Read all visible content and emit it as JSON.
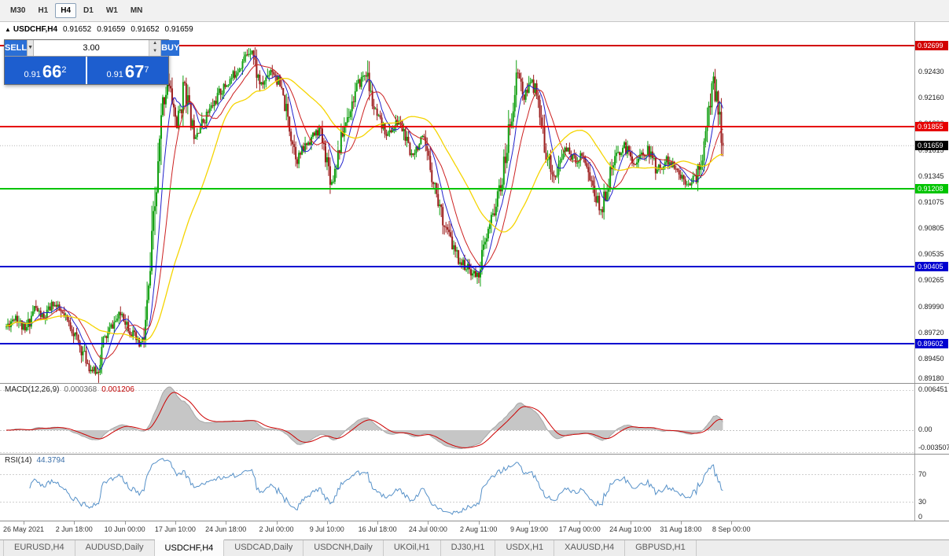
{
  "toolbar": {
    "timeframes": [
      "M30",
      "H1",
      "H4",
      "D1",
      "W1",
      "MN"
    ],
    "active": "H4"
  },
  "symbol_header": {
    "icon": "▲",
    "symbol": "USDCHF,H4",
    "open": "0.91652",
    "high": "0.91659",
    "low": "0.91652",
    "close": "0.91659"
  },
  "trade_panel": {
    "sell_label": "SELL",
    "buy_label": "BUY",
    "volume": "3.00",
    "sell_price": {
      "small": "0.91",
      "big": "66",
      "sup": "2"
    },
    "buy_price": {
      "small": "0.91",
      "big": "67",
      "sup": "7"
    }
  },
  "indicators": {
    "macd": {
      "label": "MACD(12,26,9)",
      "value_main": "0.000368",
      "value_signal": "0.001206",
      "axis_labels": [
        "0.006451",
        "0.00",
        "-0.003507"
      ]
    },
    "rsi": {
      "label": "RSI(14)",
      "value": "44.3794",
      "axis_labels": [
        "70",
        "30",
        "0"
      ]
    }
  },
  "tabs": {
    "items": [
      "EURUSD,H4",
      "AUDUSD,Daily",
      "USDCHF,H4",
      "USDCAD,Daily",
      "USDCNH,Daily",
      "UKOil,H1",
      "DJ30,H1",
      "USDX,H1",
      "XAUUSD,H4",
      "GBPUSD,H1"
    ],
    "active_index": 2
  },
  "chart_data": {
    "type": "candlestick",
    "symbol": "USDCHF",
    "timeframe": "H4",
    "bars": 459,
    "ylim": [
      0.8918,
      0.9288
    ],
    "y_ticks": [
      "0.92430",
      "0.92160",
      "0.91890",
      "0.91615",
      "0.91345",
      "0.91075",
      "0.90805",
      "0.90535",
      "0.90265",
      "0.89990",
      "0.89720",
      "0.89450",
      "0.89180"
    ],
    "x_labels": [
      "26 May 2021",
      "2 Jun 18:00",
      "10 Jun 00:00",
      "17 Jun 10:00",
      "24 Jun 18:00",
      "2 Jul 00:00",
      "9 Jul 10:00",
      "16 Jul 18:00",
      "24 Jul 00:00",
      "2 Aug 11:00",
      "9 Aug 19:00",
      "17 Aug 00:00",
      "24 Aug 10:00",
      "31 Aug 18:00",
      "8 Sep 00:00"
    ],
    "current_price": {
      "label": "0.91659",
      "value": 0.91659,
      "badge_color": "#000000"
    },
    "hlines": [
      {
        "value": 0.92699,
        "label": "0.92699",
        "color": "#d20000"
      },
      {
        "value": 0.91855,
        "label": "0.91855",
        "color": "#e60000"
      },
      {
        "value": 0.91208,
        "label": "0.91208",
        "color": "#00c400"
      },
      {
        "value": 0.90405,
        "label": "0.90405",
        "color": "#0000d0"
      },
      {
        "value": 0.89602,
        "label": "0.89602",
        "color": "#0000d0"
      }
    ],
    "colors": {
      "up": "#12a012",
      "down": "#9c1c1c",
      "ma_fast": "#2020cc",
      "ma_mid": "#cc2020",
      "ma_slow": "#f5d400",
      "macd_fill": "#c6c6c6",
      "macd_edge": "#a8a8a8",
      "macd_signal": "#cc0000",
      "rsi": "#5590c8"
    },
    "ma_periods": {
      "fast": 9,
      "mid": 18,
      "slow": 48
    },
    "macd_params": [
      12,
      26,
      9
    ],
    "rsi_period": 14,
    "close_keypoints": [
      [
        0,
        0.8978
      ],
      [
        6,
        0.899
      ],
      [
        12,
        0.8972
      ],
      [
        18,
        0.8998
      ],
      [
        24,
        0.8986
      ],
      [
        30,
        0.9002
      ],
      [
        36,
        0.899
      ],
      [
        42,
        0.8976
      ],
      [
        48,
        0.8954
      ],
      [
        54,
        0.8934
      ],
      [
        58,
        0.893
      ],
      [
        62,
        0.8962
      ],
      [
        68,
        0.898
      ],
      [
        74,
        0.8992
      ],
      [
        80,
        0.8972
      ],
      [
        85,
        0.8958
      ],
      [
        88,
        0.8966
      ],
      [
        91,
        0.9012
      ],
      [
        94,
        0.908
      ],
      [
        97,
        0.914
      ],
      [
        100,
        0.9208
      ],
      [
        103,
        0.9232
      ],
      [
        106,
        0.9214
      ],
      [
        109,
        0.9186
      ],
      [
        112,
        0.921
      ],
      [
        114,
        0.9232
      ],
      [
        117,
        0.92
      ],
      [
        120,
        0.9178
      ],
      [
        124,
        0.9186
      ],
      [
        128,
        0.9198
      ],
      [
        132,
        0.9208
      ],
      [
        136,
        0.922
      ],
      [
        140,
        0.9228
      ],
      [
        144,
        0.9236
      ],
      [
        148,
        0.9246
      ],
      [
        152,
        0.9256
      ],
      [
        155,
        0.9264
      ],
      [
        157,
        0.9268
      ],
      [
        160,
        0.9242
      ],
      [
        163,
        0.9228
      ],
      [
        166,
        0.9236
      ],
      [
        169,
        0.9246
      ],
      [
        172,
        0.924
      ],
      [
        175,
        0.9226
      ],
      [
        178,
        0.9208
      ],
      [
        182,
        0.9178
      ],
      [
        186,
        0.9152
      ],
      [
        189,
        0.916
      ],
      [
        192,
        0.9168
      ],
      [
        196,
        0.9176
      ],
      [
        200,
        0.9182
      ],
      [
        204,
        0.9158
      ],
      [
        208,
        0.9128
      ],
      [
        212,
        0.9158
      ],
      [
        216,
        0.9186
      ],
      [
        220,
        0.9206
      ],
      [
        224,
        0.9226
      ],
      [
        228,
        0.9238
      ],
      [
        230,
        0.9242
      ],
      [
        233,
        0.9218
      ],
      [
        236,
        0.9198
      ],
      [
        240,
        0.9186
      ],
      [
        244,
        0.9178
      ],
      [
        248,
        0.9186
      ],
      [
        251,
        0.9192
      ],
      [
        254,
        0.918
      ],
      [
        258,
        0.9156
      ],
      [
        262,
        0.9164
      ],
      [
        266,
        0.9172
      ],
      [
        270,
        0.915
      ],
      [
        274,
        0.9124
      ],
      [
        278,
        0.9096
      ],
      [
        282,
        0.9076
      ],
      [
        286,
        0.9058
      ],
      [
        290,
        0.9046
      ],
      [
        294,
        0.904
      ],
      [
        298,
        0.9034
      ],
      [
        301,
        0.903
      ],
      [
        304,
        0.9052
      ],
      [
        307,
        0.9068
      ],
      [
        310,
        0.9088
      ],
      [
        313,
        0.9106
      ],
      [
        316,
        0.9124
      ],
      [
        319,
        0.9152
      ],
      [
        322,
        0.919
      ],
      [
        325,
        0.9224
      ],
      [
        327,
        0.9242
      ],
      [
        329,
        0.923
      ],
      [
        331,
        0.9214
      ],
      [
        334,
        0.9226
      ],
      [
        336,
        0.9238
      ],
      [
        339,
        0.9214
      ],
      [
        342,
        0.9184
      ],
      [
        345,
        0.916
      ],
      [
        348,
        0.9144
      ],
      [
        351,
        0.9132
      ],
      [
        354,
        0.9148
      ],
      [
        357,
        0.9164
      ],
      [
        360,
        0.9158
      ],
      [
        364,
        0.915
      ],
      [
        368,
        0.9158
      ],
      [
        371,
        0.9146
      ],
      [
        374,
        0.9128
      ],
      [
        377,
        0.9112
      ],
      [
        380,
        0.9098
      ],
      [
        383,
        0.9118
      ],
      [
        386,
        0.9136
      ],
      [
        389,
        0.915
      ],
      [
        392,
        0.916
      ],
      [
        395,
        0.9166
      ],
      [
        398,
        0.9158
      ],
      [
        402,
        0.9148
      ],
      [
        406,
        0.9156
      ],
      [
        410,
        0.9162
      ],
      [
        413,
        0.9152
      ],
      [
        416,
        0.914
      ],
      [
        419,
        0.9146
      ],
      [
        422,
        0.9152
      ],
      [
        426,
        0.9144
      ],
      [
        430,
        0.9136
      ],
      [
        434,
        0.913
      ],
      [
        438,
        0.9128
      ],
      [
        441,
        0.9134
      ],
      [
        444,
        0.915
      ],
      [
        447,
        0.9172
      ],
      [
        449,
        0.92
      ],
      [
        451,
        0.9238
      ],
      [
        453,
        0.922
      ],
      [
        455,
        0.92
      ],
      [
        457,
        0.918
      ],
      [
        458,
        0.9166
      ]
    ]
  }
}
